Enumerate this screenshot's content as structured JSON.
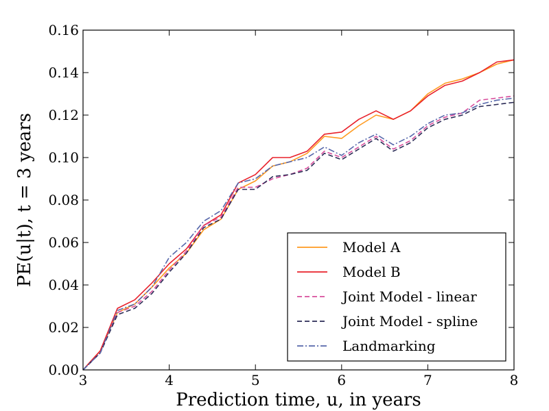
{
  "chart_data": {
    "type": "line",
    "title": "",
    "xlabel": "Prediction time, u, in years",
    "ylabel": "PE(u|t), t = 3 years",
    "xlim": [
      3,
      8
    ],
    "ylim": [
      0,
      0.16
    ],
    "xticks": [
      3,
      4,
      5,
      6,
      7,
      8
    ],
    "yticks": [
      0.0,
      0.02,
      0.04,
      0.06,
      0.08,
      0.1,
      0.12,
      0.14,
      0.16
    ],
    "xtick_labels": [
      "3",
      "4",
      "5",
      "6",
      "7",
      "8"
    ],
    "ytick_labels": [
      "0.00",
      "0.02",
      "0.04",
      "0.06",
      "0.08",
      "0.10",
      "0.12",
      "0.14",
      "0.16"
    ],
    "grid": false,
    "legend_position": "lower-right",
    "x": [
      3.0,
      3.2,
      3.4,
      3.6,
      3.8,
      4.0,
      4.2,
      4.4,
      4.6,
      4.8,
      5.0,
      5.2,
      5.4,
      5.6,
      5.8,
      6.0,
      6.2,
      6.4,
      6.6,
      6.8,
      7.0,
      7.2,
      7.4,
      7.6,
      7.8,
      8.0
    ],
    "series": [
      {
        "name": "Model A",
        "color": "#ff9a1f",
        "style": "solid",
        "values": [
          0.0,
          0.009,
          0.027,
          0.031,
          0.039,
          0.048,
          0.055,
          0.066,
          0.071,
          0.085,
          0.089,
          0.096,
          0.098,
          0.102,
          0.11,
          0.109,
          0.115,
          0.12,
          0.118,
          0.122,
          0.13,
          0.135,
          0.137,
          0.14,
          0.144,
          0.146
        ]
      },
      {
        "name": "Model B",
        "color": "#e8202a",
        "style": "solid",
        "values": [
          0.0,
          0.009,
          0.029,
          0.033,
          0.041,
          0.05,
          0.057,
          0.068,
          0.073,
          0.088,
          0.092,
          0.1,
          0.1,
          0.103,
          0.111,
          0.112,
          0.118,
          0.122,
          0.118,
          0.122,
          0.129,
          0.134,
          0.136,
          0.14,
          0.145,
          0.146
        ]
      },
      {
        "name": "Joint Model - linear",
        "color": "#d84d9c",
        "style": "dashed",
        "values": [
          0.0,
          0.008,
          0.027,
          0.03,
          0.037,
          0.047,
          0.056,
          0.068,
          0.072,
          0.086,
          0.086,
          0.09,
          0.092,
          0.095,
          0.103,
          0.1,
          0.105,
          0.11,
          0.104,
          0.108,
          0.115,
          0.119,
          0.121,
          0.127,
          0.128,
          0.129
        ]
      },
      {
        "name": "Joint Model - spline",
        "color": "#2a2a55",
        "style": "dashed",
        "values": [
          0.0,
          0.008,
          0.026,
          0.029,
          0.036,
          0.046,
          0.055,
          0.067,
          0.071,
          0.085,
          0.085,
          0.091,
          0.092,
          0.094,
          0.102,
          0.099,
          0.104,
          0.109,
          0.103,
          0.107,
          0.114,
          0.118,
          0.12,
          0.124,
          0.125,
          0.126
        ]
      },
      {
        "name": "Landmarking",
        "color": "#5566aa",
        "style": "dashdot",
        "values": [
          0.0,
          0.008,
          0.028,
          0.031,
          0.039,
          0.053,
          0.06,
          0.07,
          0.075,
          0.088,
          0.09,
          0.096,
          0.098,
          0.1,
          0.105,
          0.101,
          0.107,
          0.111,
          0.106,
          0.11,
          0.116,
          0.12,
          0.121,
          0.125,
          0.127,
          0.128
        ]
      }
    ]
  }
}
